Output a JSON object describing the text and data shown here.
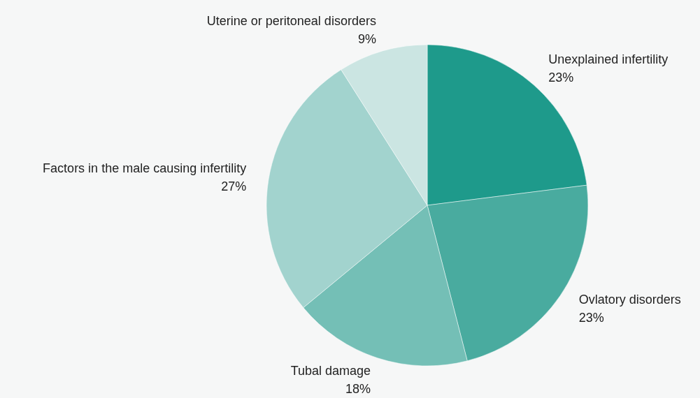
{
  "chart_data": {
    "type": "pie",
    "categories": [
      "Unexplained infertility",
      "Ovlatory disorders",
      "Tubal damage",
      "Factors in the male causing infertility",
      "Uterine or peritoneal disorders"
    ],
    "values": [
      23,
      23,
      18,
      27,
      9
    ],
    "colors": [
      "#1e9a8b",
      "#49ab9f",
      "#74bfb6",
      "#a2d3ce",
      "#cbe5e2"
    ],
    "value_labels": [
      "23%",
      "23%",
      "18%",
      "27%",
      "9%"
    ]
  }
}
